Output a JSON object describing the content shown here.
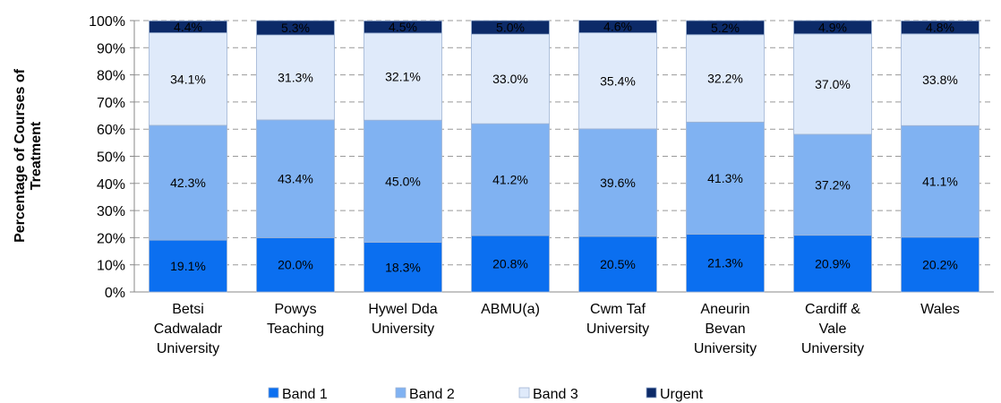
{
  "chart_data": {
    "type": "stacked_bar",
    "ylabel": "Percentage of Courses of\nTreatment",
    "categories": [
      "Betsi\nCadwaladr\nUniversity",
      "Powys\nTeaching",
      "Hywel Dda\nUniversity",
      "ABMU(a)",
      "Cwm Taf\nUniversity",
      "Aneurin\nBevan\nUniversity",
      "Cardiff &\nVale\nUniversity",
      "Wales"
    ],
    "series": [
      {
        "name": "Band 1",
        "color": "#0b6ff0",
        "values": [
          19.1,
          20.0,
          18.3,
          20.8,
          20.5,
          21.3,
          20.9,
          20.2
        ],
        "value_labels": [
          "19.1%",
          "20.0%",
          "18.3%",
          "20.8%",
          "20.5%",
          "21.3%",
          "20.9%",
          "20.2%"
        ]
      },
      {
        "name": "Band 2",
        "color": "#80b2f2",
        "values": [
          42.3,
          43.4,
          45.0,
          41.2,
          39.6,
          41.3,
          37.2,
          41.1
        ],
        "value_labels": [
          "42.3%",
          "43.4%",
          "45.0%",
          "41.2%",
          "39.6%",
          "41.3%",
          "37.2%",
          "41.1%"
        ]
      },
      {
        "name": "Band 3",
        "color": "#dfeafa",
        "values": [
          34.1,
          31.3,
          32.1,
          33.0,
          35.4,
          32.2,
          37.0,
          33.8
        ],
        "value_labels": [
          "34.1%",
          "31.3%",
          "32.1%",
          "33.0%",
          "35.4%",
          "32.2%",
          "37.0%",
          "33.8%"
        ]
      },
      {
        "name": "Urgent",
        "color": "#0c2a68",
        "values": [
          4.4,
          5.3,
          4.5,
          5.0,
          4.6,
          5.2,
          4.9,
          4.8
        ],
        "value_labels": [
          "4.4%",
          "5.3%",
          "4.5%",
          "5.0%",
          "4.6%",
          "5.2%",
          "4.9%",
          "4.8%"
        ]
      }
    ],
    "ylim": [
      0,
      100
    ],
    "yticks": [
      {
        "value": 0,
        "label": "0%"
      },
      {
        "value": 10,
        "label": "10%"
      },
      {
        "value": 20,
        "label": "20%"
      },
      {
        "value": 30,
        "label": "30%"
      },
      {
        "value": 40,
        "label": "40%"
      },
      {
        "value": 50,
        "label": "50%"
      },
      {
        "value": 60,
        "label": "60%"
      },
      {
        "value": 70,
        "label": "70%"
      },
      {
        "value": 80,
        "label": "80%"
      },
      {
        "value": 90,
        "label": "90%"
      },
      {
        "value": 100,
        "label": "100%"
      }
    ],
    "grid": true,
    "legend": "bottom"
  }
}
